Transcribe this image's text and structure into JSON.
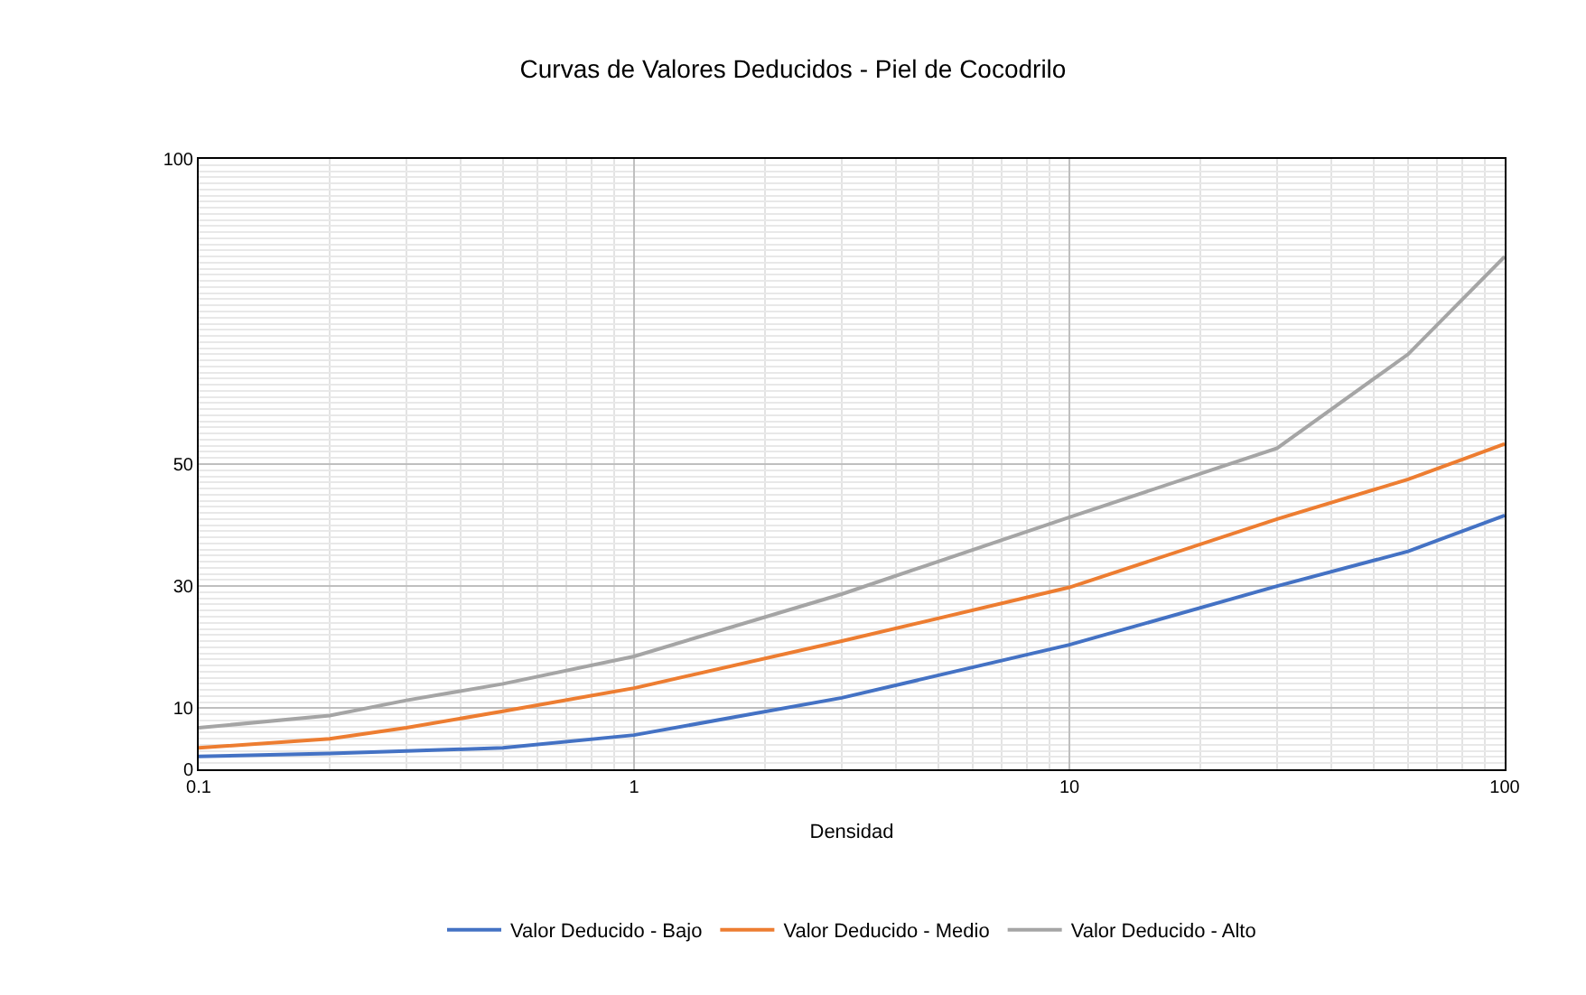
{
  "chart_data": {
    "type": "line",
    "title": "Curvas de Valores Deducidos - Piel de Cocodrilo",
    "xlabel": "Densidad",
    "x": [
      0.1,
      0.2,
      0.3,
      0.5,
      1,
      3,
      10,
      30,
      60,
      100
    ],
    "series": [
      {
        "name": "Valor Deducido - Bajo",
        "color": "#4472c4",
        "values": [
          2.1,
          2.6,
          3.0,
          3.5,
          5.6,
          11.7,
          20.4,
          30,
          35.7,
          41.6
        ]
      },
      {
        "name": "Valor Deducido - Medio",
        "color": "#ed7d31",
        "values": [
          3.5,
          5.0,
          6.8,
          9.5,
          13.3,
          21,
          29.8,
          41,
          47.5,
          53.3
        ]
      },
      {
        "name": "Valor Deducido - Alto",
        "color": "#a5a5a5",
        "values": [
          6.8,
          8.8,
          11.3,
          14.0,
          18.5,
          28.7,
          41.3,
          52.6,
          68,
          84
        ]
      }
    ],
    "log": "x",
    "xlim": [
      0.1,
      100
    ],
    "xticks": [
      0.1,
      1,
      10,
      100
    ],
    "ylim": [
      0,
      100
    ],
    "yticks": [
      0,
      10,
      30,
      50,
      100
    ],
    "grid": true,
    "legend": "bottom",
    "marker": "none",
    "line_style": "solid"
  }
}
